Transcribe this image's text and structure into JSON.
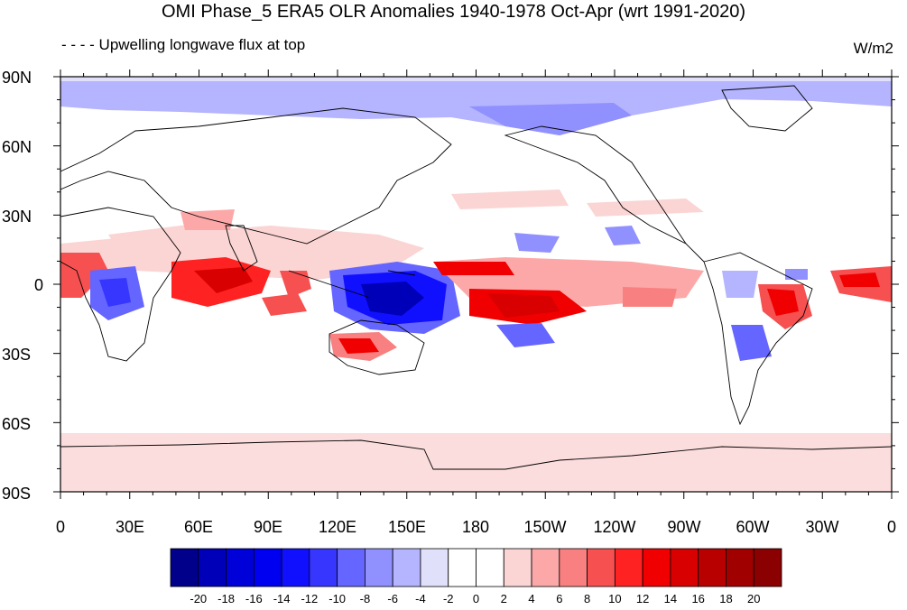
{
  "title": "OMI Phase_5 ERA5 OLR Anomalies 1940-1978 Oct-Apr (wrt 1991-2020)",
  "subtitle": "- - - - Upwelling longwave flux at top",
  "units": "W/m2",
  "lat_labels": [
    "90N",
    "60N",
    "30N",
    "0",
    "30S",
    "60S",
    "90S"
  ],
  "lon_labels": [
    "0",
    "30E",
    "60E",
    "90E",
    "120E",
    "150E",
    "180",
    "150W",
    "120W",
    "90W",
    "60W",
    "30W",
    "0"
  ],
  "colorbar": {
    "labels": [
      "-20",
      "-18",
      "-16",
      "-14",
      "-12",
      "-10",
      "-8",
      "-6",
      "-4",
      "-2",
      "0",
      "2",
      "4",
      "6",
      "8",
      "10",
      "12",
      "14",
      "16",
      "18",
      "20"
    ],
    "colors": [
      "#00008b",
      "#0000b8",
      "#0000d8",
      "#0000f0",
      "#1010ff",
      "#3636ff",
      "#6565ff",
      "#9090ff",
      "#b4b4ff",
      "#e0e0fb",
      "#ffffff",
      "#ffffff",
      "#fbd4d4",
      "#fca8a8",
      "#f88080",
      "#f65050",
      "#ff2222",
      "#f00000",
      "#d80000",
      "#b80000",
      "#a00000",
      "#8b0000"
    ]
  }
}
